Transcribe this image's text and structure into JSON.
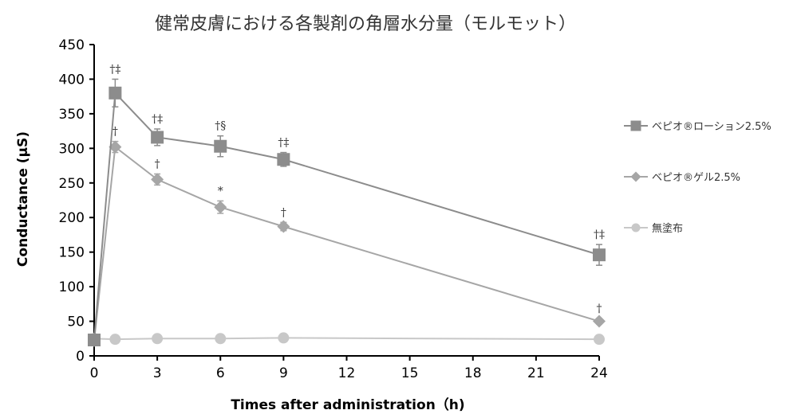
{
  "chart_data": {
    "type": "line",
    "title": "健常皮膚における各製剤の角層水分量（モルモット）",
    "xlabel": "Times after administration（h)",
    "ylabel": "Conductance (μS)",
    "xlim": [
      0,
      24
    ],
    "ylim": [
      0,
      450
    ],
    "xticks": [
      0,
      3,
      6,
      9,
      12,
      15,
      18,
      21,
      24
    ],
    "yticks": [
      0,
      50,
      100,
      150,
      200,
      250,
      300,
      350,
      400,
      450
    ],
    "grid": false,
    "legend_position": "right",
    "series": [
      {
        "name": "ベピオ®ローション2.5%",
        "marker": "square",
        "color": "#8c8c8c",
        "x": [
          0,
          1,
          3,
          6,
          9,
          24
        ],
        "y": [
          23,
          380,
          316,
          303,
          284,
          146
        ],
        "error": [
          0,
          20,
          12,
          15,
          10,
          15
        ],
        "annotations": [
          "",
          "†‡",
          "†‡",
          "†§",
          "†‡",
          "†‡"
        ]
      },
      {
        "name": "ベピオ®ゲル2.5%",
        "marker": "diamond",
        "color": "#a6a6a6",
        "x": [
          0,
          1,
          3,
          6,
          9,
          24
        ],
        "y": [
          22,
          302,
          255,
          215,
          187,
          50
        ],
        "error": [
          0,
          8,
          8,
          9,
          6,
          4
        ],
        "annotations": [
          "",
          "†",
          "†",
          "*",
          "†",
          "†"
        ]
      },
      {
        "name": "無塗布",
        "marker": "circle",
        "color": "#c8c8c8",
        "x": [
          0,
          1,
          3,
          6,
          9,
          24
        ],
        "y": [
          25,
          24,
          25,
          25,
          26,
          24
        ],
        "error": [
          0,
          0,
          0,
          0,
          0,
          0
        ],
        "annotations": [
          "",
          "",
          "",
          "",
          "",
          ""
        ]
      }
    ]
  }
}
